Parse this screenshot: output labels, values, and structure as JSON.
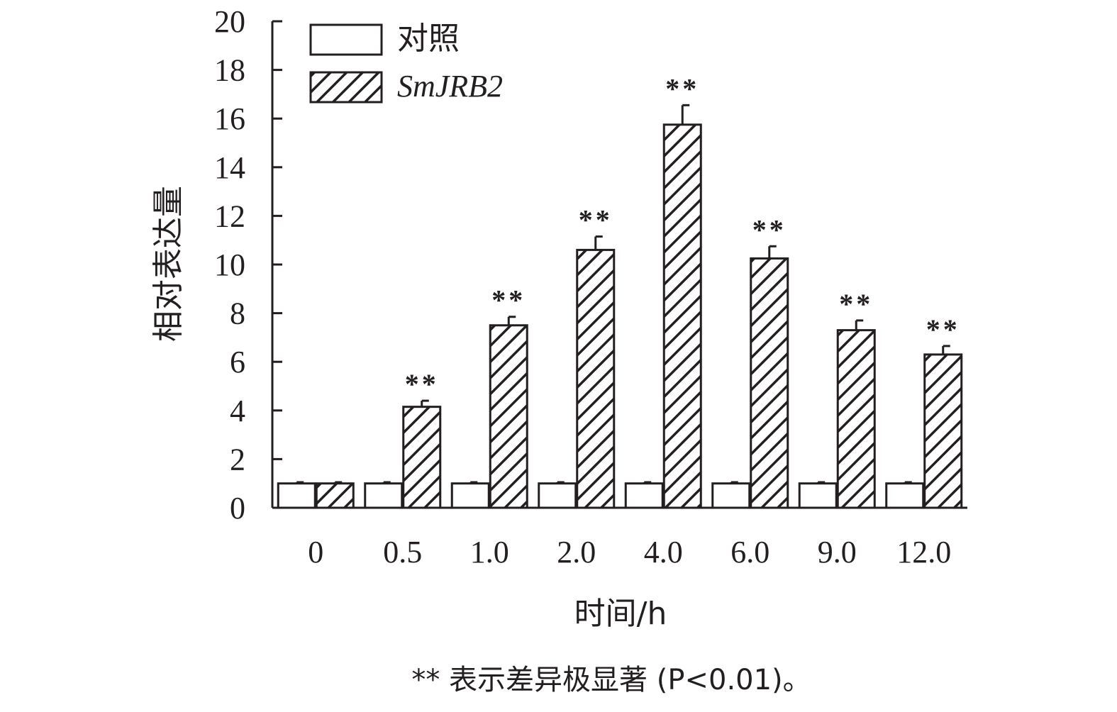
{
  "chart_data": {
    "type": "bar",
    "categories": [
      "0",
      "0.5",
      "1.0",
      "2.0",
      "4.0",
      "6.0",
      "9.0",
      "12.0"
    ],
    "series": [
      {
        "name": "对照",
        "values": [
          1.0,
          1.0,
          1.0,
          1.0,
          1.0,
          1.0,
          1.0,
          1.0
        ],
        "errors": [
          0.05,
          0.05,
          0.05,
          0.05,
          0.05,
          0.05,
          0.05,
          0.05
        ],
        "fill": "#ffffff",
        "pattern": "none"
      },
      {
        "name": "SmJRB2",
        "values": [
          1.0,
          4.15,
          7.5,
          10.6,
          15.75,
          10.25,
          7.3,
          6.3
        ],
        "errors": [
          0.05,
          0.25,
          0.35,
          0.55,
          0.8,
          0.5,
          0.4,
          0.35
        ],
        "fill": "#ffffff",
        "pattern": "diagonal-hatch",
        "significance": [
          "",
          "**",
          "**",
          "**",
          "**",
          "**",
          "**",
          "**"
        ]
      }
    ],
    "xlabel": "时间/h",
    "ylabel": "相对表达量",
    "ylim": [
      0,
      20
    ],
    "yticks": [
      "0",
      "2",
      "4",
      "6",
      "8",
      "10",
      "12",
      "14",
      "16",
      "18",
      "20"
    ],
    "grid": false,
    "legend_position": "top-left",
    "footnote": "** 表示差异极显著 (P<0.01)。",
    "line_color": "#231f20"
  }
}
